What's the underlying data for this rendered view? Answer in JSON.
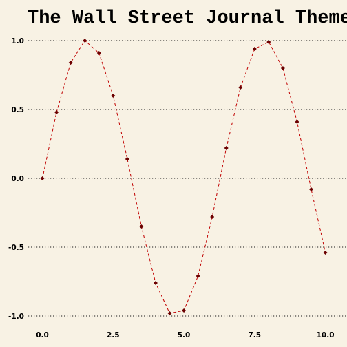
{
  "chart_data": {
    "type": "line",
    "title": "The Wall Street Journal Theme",
    "xlabel": "",
    "ylabel": "",
    "xlim": [
      -0.5,
      10.4
    ],
    "ylim": [
      -1.05,
      1.05
    ],
    "x_ticks": [
      0.0,
      2.5,
      5.0,
      7.5,
      10.0
    ],
    "x_tick_labels": [
      "0.0",
      "2.5",
      "5.0",
      "7.5",
      "10.0"
    ],
    "y_ticks": [
      1.0,
      0.5,
      0.0,
      -0.5,
      -1.0
    ],
    "y_tick_labels": [
      "1.0",
      "0.5",
      "0.0",
      "-0.5",
      "-1.0"
    ],
    "grid": "horizontal dotted",
    "series": [
      {
        "color": "#c00000",
        "marker_color": "#6b0000",
        "x": [
          0.0,
          0.5,
          1.0,
          1.5,
          2.0,
          2.5,
          3.0,
          3.5,
          4.0,
          4.5,
          5.0,
          5.5,
          6.0,
          6.5,
          7.0,
          7.5,
          8.0,
          8.5,
          9.0,
          9.5,
          10.0
        ],
        "y": [
          0.0,
          0.48,
          0.84,
          1.0,
          0.91,
          0.6,
          0.14,
          -0.35,
          -0.76,
          -0.98,
          -0.96,
          -0.71,
          -0.28,
          0.22,
          0.66,
          0.94,
          0.99,
          0.8,
          0.41,
          -0.08,
          -0.54
        ]
      }
    ]
  }
}
